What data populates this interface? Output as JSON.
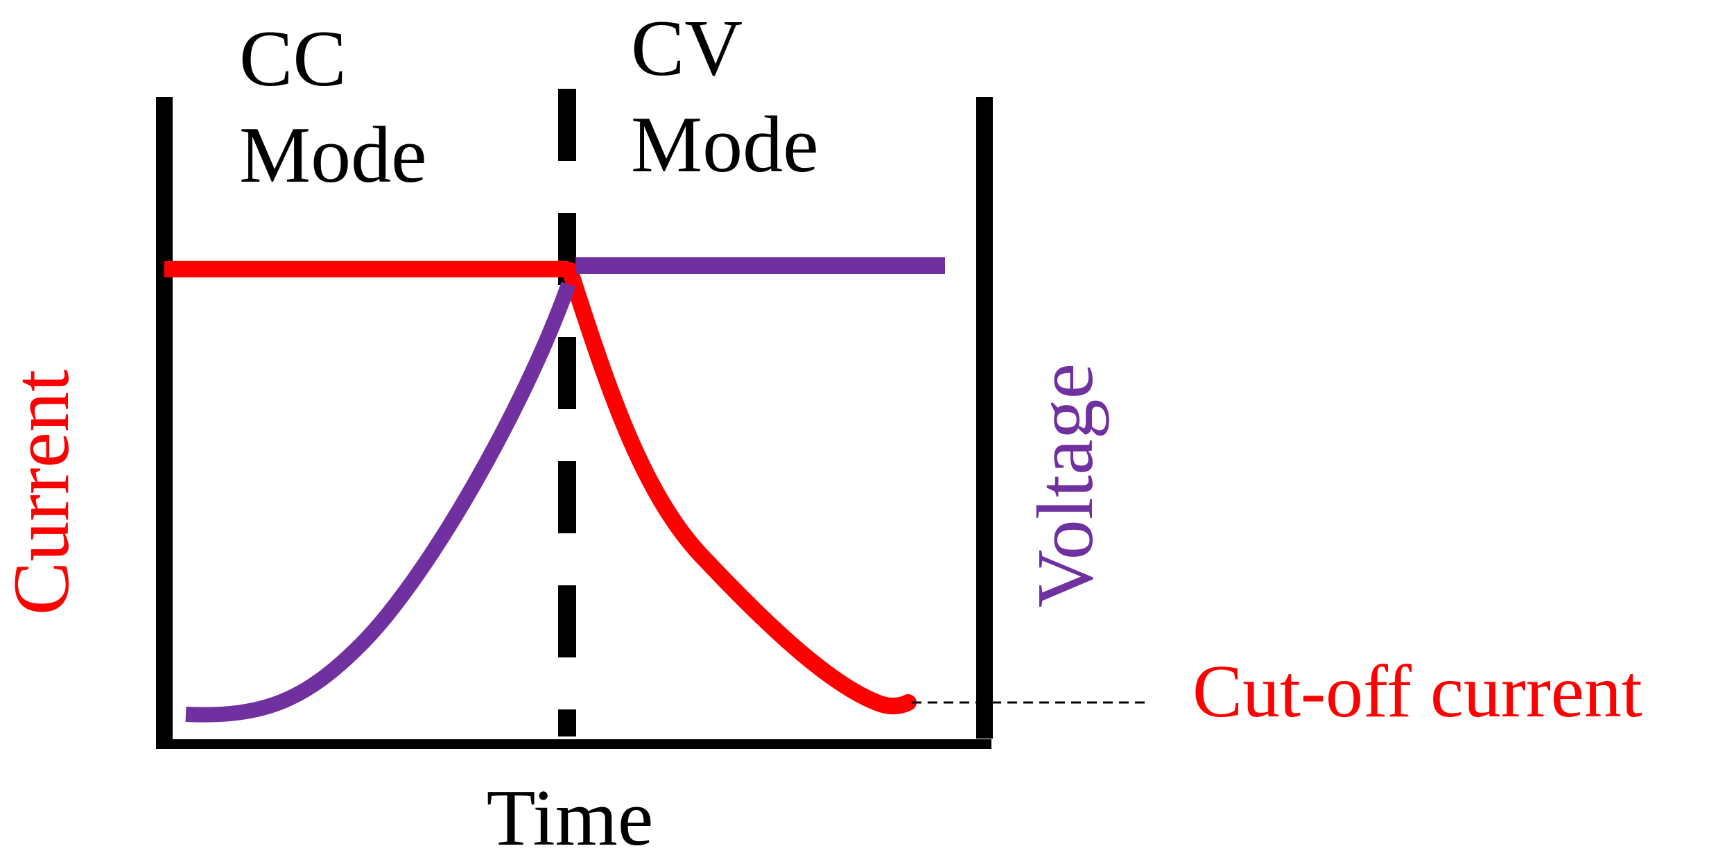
{
  "labels": {
    "cc_line1": "CC",
    "cc_line2": "Mode",
    "cv_line1": "CV",
    "cv_line2": "Mode",
    "current_axis": "Current",
    "voltage_axis": "Voltage",
    "time_axis": "Time",
    "cutoff": "Cut-off current"
  },
  "colors": {
    "current": "#ff0000",
    "voltage": "#7030a0",
    "frame": "#000000",
    "text": "#000000"
  }
}
